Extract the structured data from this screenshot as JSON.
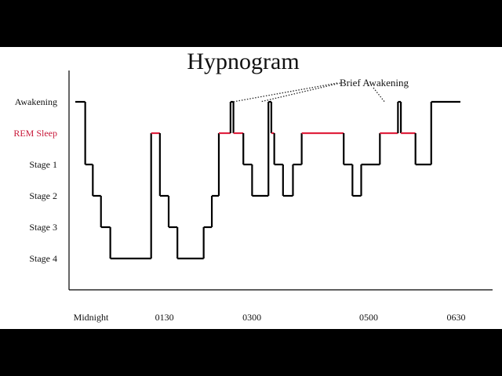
{
  "chart_data": {
    "type": "line",
    "title": "Hypnogram",
    "xlabel": "",
    "ylabel": "",
    "stages": [
      "Awakening",
      "REM Sleep",
      "Stage 1",
      "Stage 2",
      "Stage 3",
      "Stage 4"
    ],
    "x_ticks": [
      {
        "label": "Midnight",
        "hours": 0
      },
      {
        "label": "0130",
        "hours": 1.5
      },
      {
        "label": "0300",
        "hours": 3
      },
      {
        "label": "0500",
        "hours": 5
      },
      {
        "label": "0630",
        "hours": 6.5
      }
    ],
    "xlim_hours": [
      0,
      6.95
    ],
    "annotation": "Brief Awakening",
    "brief_awakening_hours": [
      2.7,
      3.17,
      5.3
    ],
    "colors": {
      "line": "#000000",
      "rem": "#e0223f",
      "rem_label": "#c8193a",
      "axis": "#000000"
    },
    "segments": [
      {
        "stage": "Awakening",
        "start": 0.0,
        "end": 0.17
      },
      {
        "stage": "Stage 1",
        "start": 0.17,
        "end": 0.3
      },
      {
        "stage": "Stage 2",
        "start": 0.3,
        "end": 0.44
      },
      {
        "stage": "Stage 3",
        "start": 0.44,
        "end": 0.6
      },
      {
        "stage": "Stage 4",
        "start": 0.6,
        "end": 1.3
      },
      {
        "stage": "REM Sleep",
        "start": 1.3,
        "end": 1.45
      },
      {
        "stage": "Stage 2",
        "start": 1.45,
        "end": 1.6
      },
      {
        "stage": "Stage 3",
        "start": 1.6,
        "end": 1.75
      },
      {
        "stage": "Stage 4",
        "start": 1.75,
        "end": 2.2
      },
      {
        "stage": "Stage 3",
        "start": 2.2,
        "end": 2.34
      },
      {
        "stage": "Stage 2",
        "start": 2.34,
        "end": 2.46
      },
      {
        "stage": "REM Sleep",
        "start": 2.46,
        "end": 2.66
      },
      {
        "stage": "Awakening",
        "start": 2.66,
        "end": 2.71
      },
      {
        "stage": "REM Sleep",
        "start": 2.71,
        "end": 2.88
      },
      {
        "stage": "Stage 1",
        "start": 2.88,
        "end": 3.03
      },
      {
        "stage": "Stage 2",
        "start": 3.03,
        "end": 3.31
      },
      {
        "stage": "Awakening",
        "start": 3.31,
        "end": 3.36
      },
      {
        "stage": "REM Sleep",
        "start": 3.36,
        "end": 3.41
      },
      {
        "stage": "Stage 1",
        "start": 3.41,
        "end": 3.56
      },
      {
        "stage": "Stage 2",
        "start": 3.56,
        "end": 3.73
      },
      {
        "stage": "Stage 1",
        "start": 3.73,
        "end": 3.88
      },
      {
        "stage": "REM Sleep",
        "start": 3.88,
        "end": 4.6
      },
      {
        "stage": "Stage 1",
        "start": 4.6,
        "end": 4.75
      },
      {
        "stage": "Stage 2",
        "start": 4.75,
        "end": 4.9
      },
      {
        "stage": "Stage 1",
        "start": 4.9,
        "end": 5.22
      },
      {
        "stage": "REM Sleep",
        "start": 5.22,
        "end": 5.53
      },
      {
        "stage": "Awakening",
        "start": 5.53,
        "end": 5.58
      },
      {
        "stage": "REM Sleep",
        "start": 5.58,
        "end": 5.83
      },
      {
        "stage": "Stage 1",
        "start": 5.83,
        "end": 6.1
      },
      {
        "stage": "Awakening",
        "start": 6.1,
        "end": 6.6
      }
    ]
  }
}
